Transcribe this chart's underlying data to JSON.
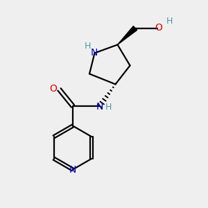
{
  "bg_color": "#efefef",
  "atom_colors": {
    "C": "#000000",
    "N": "#0000cc",
    "O": "#dd0000",
    "H": "#4a9a9a"
  },
  "bond_color": "#000000",
  "figsize": [
    3.0,
    3.0
  ],
  "dpi": 100
}
